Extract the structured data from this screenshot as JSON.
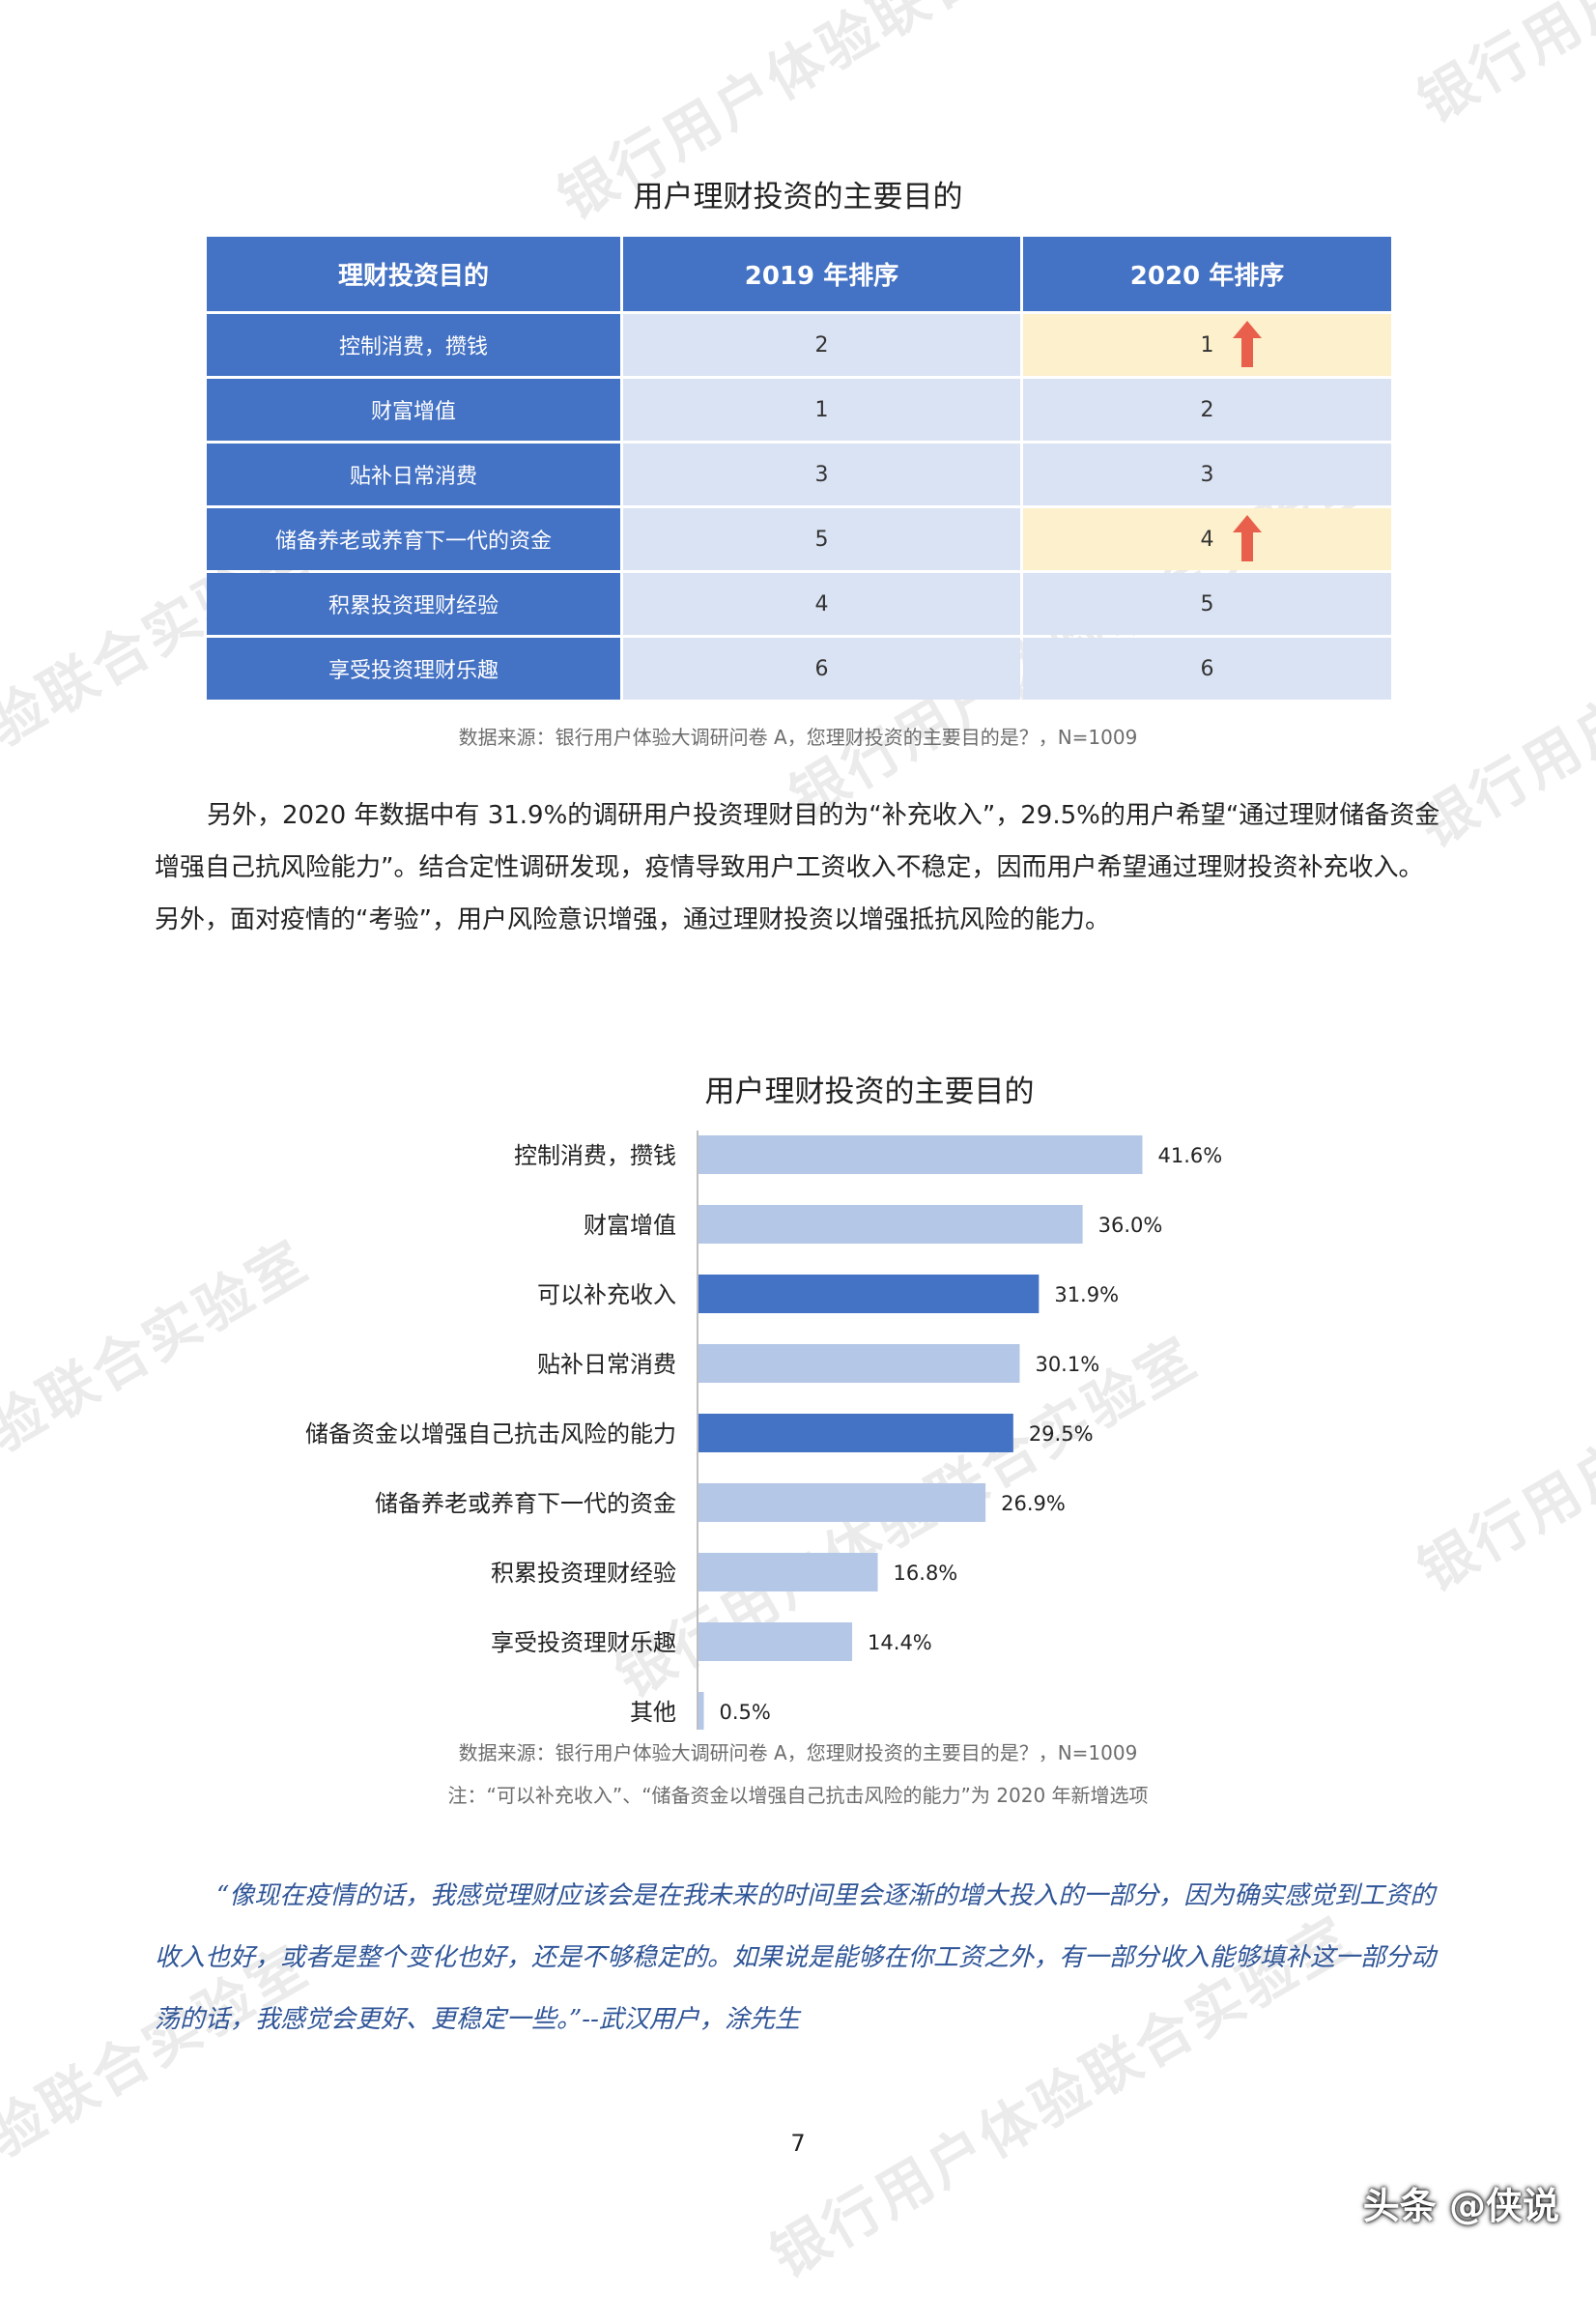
{
  "watermark": "银行用户体验联合实验室",
  "table_title": "用户理财投资的主要目的",
  "table": {
    "headers": [
      "理财投资目的",
      "2019 年排序",
      "2020 年排序"
    ],
    "rows": [
      {
        "purpose": "控制消费，攒钱",
        "rank2019": "2",
        "rank2020": "1",
        "up": true
      },
      {
        "purpose": "财富增值",
        "rank2019": "1",
        "rank2020": "2",
        "up": false
      },
      {
        "purpose": "贴补日常消费",
        "rank2019": "3",
        "rank2020": "3",
        "up": false
      },
      {
        "purpose": "储备养老或养育下一代的资金",
        "rank2019": "5",
        "rank2020": "4",
        "up": true
      },
      {
        "purpose": "积累投资理财经验",
        "rank2019": "4",
        "rank2020": "5",
        "up": false
      },
      {
        "purpose": "享受投资理财乐趣",
        "rank2019": "6",
        "rank2020": "6",
        "up": false
      }
    ],
    "highlight_color": "#fdf0cc",
    "arrow_color": "#e8604c"
  },
  "table_source": "数据来源：银行用户体验大调研问卷 A，您理财投资的主要目的是？，N=1009",
  "paragraph": "另外，2020 年数据中有 31.9%的调研用户投资理财目的为“补充收入”，29.5%的用户希望“通过理财储备资金增强自己抗风险能力”。结合定性调研发现，疫情导致用户工资收入不稳定，因而用户希望通过理财投资补充收入。另外，面对疫情的“考验”，用户风险意识增强，通过理财投资以增强抵抗风险的能力。",
  "chart_data": {
    "type": "bar",
    "orientation": "horizontal",
    "title": "用户理财投资的主要目的",
    "categories": [
      "控制消费，攒钱",
      "财富增值",
      "可以补充收入",
      "贴补日常消费",
      "储备资金以增强自己抗击风险的能力",
      "储备养老或养育下一代的资金",
      "积累投资理财经验",
      "享受投资理财乐趣",
      "其他"
    ],
    "values": [
      41.6,
      36.0,
      31.9,
      30.1,
      29.5,
      26.9,
      16.8,
      14.4,
      0.5
    ],
    "value_labels": [
      "41.6%",
      "36.0%",
      "31.9%",
      "30.1%",
      "29.5%",
      "26.9%",
      "16.8%",
      "14.4%",
      "0.5%"
    ],
    "highlighted": [
      false,
      false,
      true,
      false,
      true,
      false,
      false,
      false,
      false
    ],
    "xlim": [
      0,
      50
    ],
    "colors": {
      "normal": "#b4c7e7",
      "highlight": "#4472c4"
    },
    "grid": false
  },
  "chart_source": "数据来源：银行用户体验大调研问卷 A，您理财投资的主要目的是？，N=1009",
  "chart_note": "注：“可以补充收入”、“储备资金以增强自己抗击风险的能力”为 2020 年新增选项",
  "quote": "“像现在疫情的话，我感觉理财应该会是在我未来的时间里会逐渐的增大投入的一部分，因为确实感觉到工资的收入也好，或者是整个变化也好，还是不够稳定的。如果说是能够在你工资之外，有一部分收入能够填补这一部分动荡的话，我感觉会更好、更稳定一些。”--武汉用户，涂先生",
  "page_number": "7",
  "brand": "头条 @侠说"
}
